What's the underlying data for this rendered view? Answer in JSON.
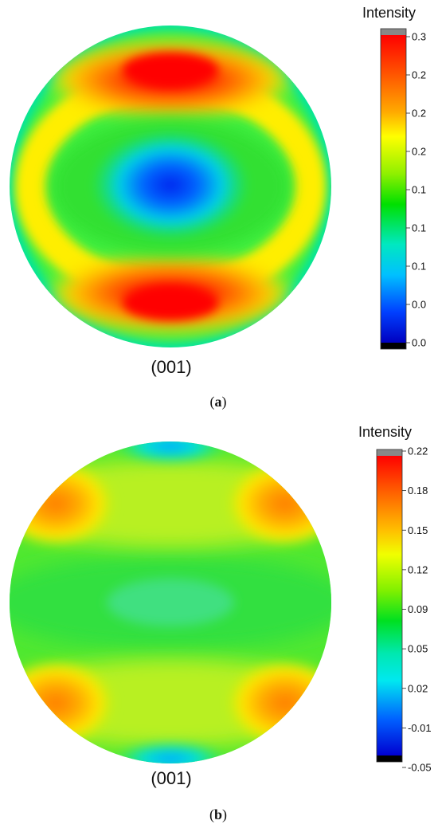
{
  "chart_data": [
    {
      "type": "heatmap",
      "panel_label": "a",
      "pole_label": "(001)",
      "colorbar": {
        "title": "Intensity",
        "tick_labels": [
          "0.3",
          "0.2",
          "0.2",
          "0.2",
          "0.1",
          "0.1",
          "0.1",
          "0.0",
          "0.0"
        ],
        "vmin": 0.0,
        "vmax": 0.3
      },
      "description": "circular pole figure with a low-intensity (blue) center and high-intensity (red) bands at top and bottom"
    },
    {
      "type": "heatmap",
      "panel_label": "b",
      "pole_label": "(001)",
      "colorbar": {
        "title": "Intensity",
        "tick_labels": [
          "0.22",
          "0.18",
          "0.15",
          "0.12",
          "0.09",
          "0.05",
          "0.02",
          "-0.01",
          "-0.05"
        ],
        "vmin": -0.05,
        "vmax": 0.22
      },
      "description": "circular pole figure, mostly green with orange maxima near the four corners and cyan at top and bottom edges"
    }
  ]
}
